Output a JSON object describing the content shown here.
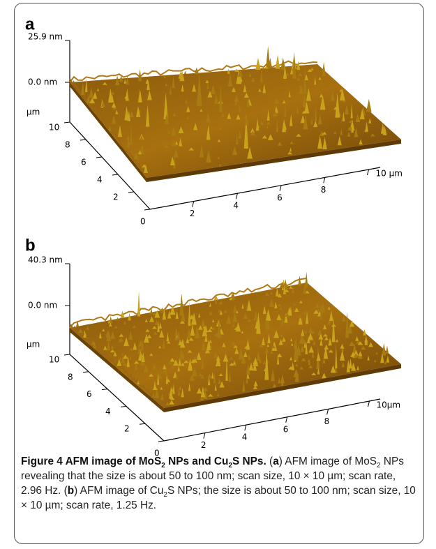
{
  "panels": [
    {
      "label": "a",
      "z_max": "25.9 nm",
      "z_zero": "0.0 nm",
      "y_unit": "µm",
      "y_ticks": [
        "10",
        "8",
        "6",
        "4",
        "2",
        "0"
      ],
      "x_ticks": [
        "2",
        "4",
        "6",
        "8",
        "10 µm"
      ]
    },
    {
      "label": "b",
      "z_max": "40.3 nm",
      "z_zero": "0.0 nm",
      "y_unit": "µm",
      "y_ticks": [
        "10",
        "8",
        "6",
        "4",
        "2",
        "0"
      ],
      "x_ticks": [
        "2",
        "4",
        "6",
        "8",
        "10µm"
      ]
    }
  ],
  "caption": {
    "parts": [
      "Figure 4 AFM image of MoS",
      "2",
      " NPs and Cu",
      "2",
      "S NPs.",
      " (",
      "a",
      ") AFM image of MoS",
      "2",
      " NPs revealing that the size is about 50 to 100 nm; scan size, 10 × 10 µm; scan rate, 2.96 Hz. (",
      "b",
      ") AFM image of Cu",
      "2",
      "S NPs; the size is about 50 to 100 nm; scan size, 10 × 10 µm; scan rate, 1.25 Hz."
    ]
  }
}
